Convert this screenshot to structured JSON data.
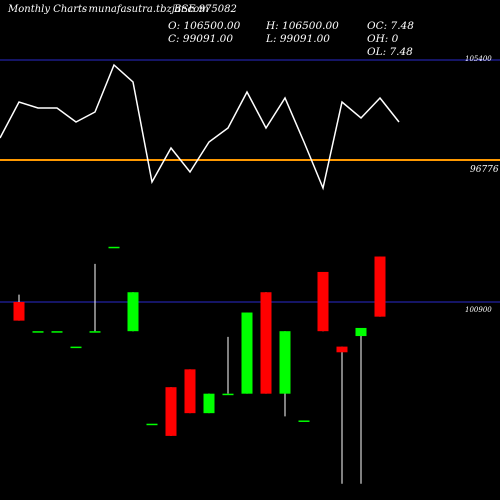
{
  "header": {
    "title": "Monthly Charts",
    "site": "- munafasutra.tbzjar.com",
    "symbol": "BSE 975082"
  },
  "ohlc": {
    "o_label": "O:",
    "o_value": "106500.00",
    "h_label": "H:",
    "h_value": "106500.00",
    "oc_label": "OC:",
    "oc_value": "7.48",
    "c_label": "C:",
    "c_value": "99091.00",
    "l_label": "L:",
    "l_value": "99091.00",
    "oh_label": "OH:",
    "oh_value": "0",
    "ol_label": "OL:",
    "ol_value": "7.48"
  },
  "axis_labels": {
    "indicator_top": "105400",
    "indicator_mid": "96776",
    "price_ref": "100900"
  },
  "colors": {
    "up": "#00ff00",
    "down": "#ff0000",
    "indicator_line": "#ffffff",
    "baseline": "#ff9900",
    "reference_line": "#2a2acc"
  },
  "chart_data": {
    "type": "candlestick",
    "indicator": {
      "values": [
        0.22,
        0.58,
        0.52,
        0.52,
        0.38,
        0.48,
        0.95,
        0.78,
        -0.22,
        0.12,
        -0.12,
        0.18,
        0.32,
        0.68,
        0.32,
        0.62,
        0.18,
        -0.28,
        0.58,
        0.42,
        0.62,
        0.38
      ],
      "reference": 105400,
      "baseline": 96776
    },
    "price": {
      "reference": 100900,
      "ylim": [
        76500,
        111000
      ],
      "candles": [
        {
          "o": 100900,
          "h": 101800,
          "l": 98600,
          "c": 98600
        },
        {
          "o": 97300,
          "h": 97300,
          "l": 97300,
          "c": 97300
        },
        {
          "o": 97300,
          "h": 97300,
          "l": 97300,
          "c": 97300
        },
        {
          "o": 95400,
          "h": 95400,
          "l": 95400,
          "c": 95400
        },
        {
          "o": 97300,
          "h": 105600,
          "l": 97300,
          "c": 97300
        },
        {
          "o": 107700,
          "h": 107700,
          "l": 107700,
          "c": 107700
        },
        {
          "o": 97300,
          "h": 102100,
          "l": 97300,
          "c": 102100
        },
        {
          "o": 85900,
          "h": 85900,
          "l": 85900,
          "c": 85900
        },
        {
          "o": 90400,
          "h": 90400,
          "l": 84400,
          "c": 84400
        },
        {
          "o": 92600,
          "h": 92600,
          "l": 87200,
          "c": 87200
        },
        {
          "o": 87200,
          "h": 89600,
          "l": 87200,
          "c": 89600
        },
        {
          "o": 89600,
          "h": 96600,
          "l": 89600,
          "c": 89600
        },
        {
          "o": 89600,
          "h": 99600,
          "l": 89600,
          "c": 99600
        },
        {
          "o": 102100,
          "h": 102100,
          "l": 89600,
          "c": 89600
        },
        {
          "o": 89600,
          "h": 97300,
          "l": 86800,
          "c": 97300
        },
        {
          "o": 86300,
          "h": 86300,
          "l": 86300,
          "c": 86300
        },
        {
          "o": 104600,
          "h": 104600,
          "l": 97300,
          "c": 97300
        },
        {
          "o": 95400,
          "h": 95400,
          "l": 78500,
          "c": 94700
        },
        {
          "o": 96700,
          "h": 97700,
          "l": 78500,
          "c": 97700
        },
        {
          "o": 106500,
          "h": 106500,
          "l": 99091,
          "c": 99091
        }
      ]
    }
  }
}
